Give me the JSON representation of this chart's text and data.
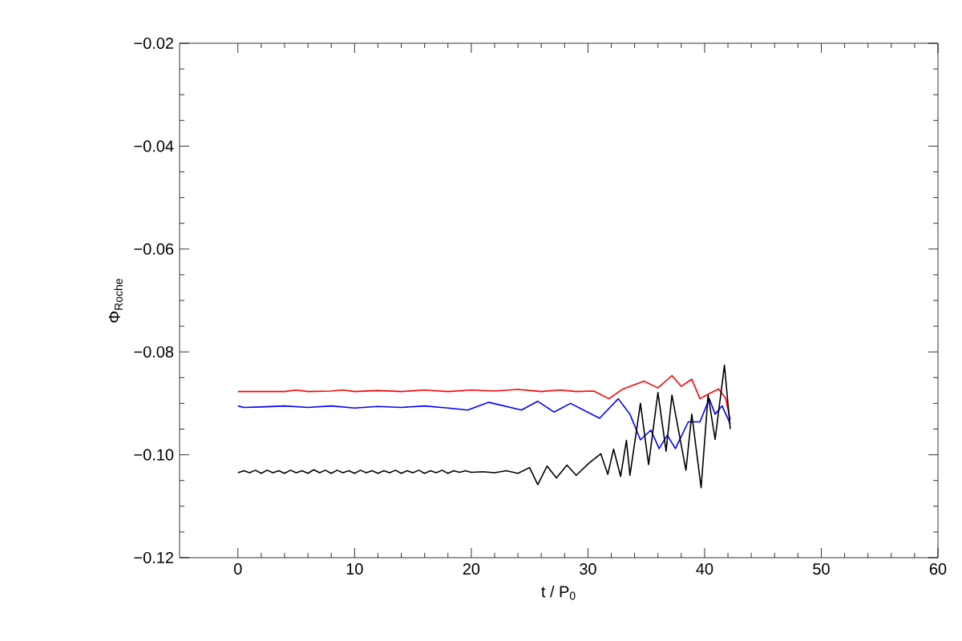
{
  "chart_data": {
    "type": "line",
    "xlabel": "t / P$_{0}$",
    "ylabel": "Φ$_{Roche}$",
    "xlim": [
      -5,
      60
    ],
    "xticks": [
      0,
      10,
      20,
      30,
      40,
      50,
      60
    ],
    "ylim": [
      -0.12,
      -0.02
    ],
    "yticks": [
      {
        "value": -0.12,
        "label": "−0.12"
      },
      {
        "value": -0.1,
        "label": "−0.10"
      },
      {
        "value": -0.08,
        "label": "−0.08"
      },
      {
        "value": -0.06,
        "label": "−0.06"
      },
      {
        "value": -0.04,
        "label": "−0.04"
      },
      {
        "value": -0.02,
        "label": "−0.02"
      }
    ],
    "marker": "none",
    "line_style": "solid",
    "series": [
      {
        "color": "#ff0000",
        "x": [
          0,
          4,
          5,
          6,
          8,
          9,
          10,
          12,
          14,
          16,
          18,
          20,
          22,
          24,
          26,
          27.6,
          29,
          30.5,
          31.8,
          33,
          34.8,
          36,
          37.2,
          38,
          38.9,
          39.6,
          40.4,
          41.2,
          41.8,
          42.2
        ],
        "values": [
          -0.0877,
          -0.0877,
          -0.0874,
          -0.0877,
          -0.0876,
          -0.0874,
          -0.0877,
          -0.0875,
          -0.0877,
          -0.0874,
          -0.0877,
          -0.0874,
          -0.0876,
          -0.0873,
          -0.0877,
          -0.0874,
          -0.0877,
          -0.0876,
          -0.0891,
          -0.0872,
          -0.0857,
          -0.087,
          -0.0846,
          -0.0867,
          -0.0853,
          -0.0891,
          -0.0881,
          -0.0872,
          -0.089,
          -0.0932
        ]
      },
      {
        "color": "#0000ff",
        "x": [
          0,
          0.5,
          2,
          4,
          6,
          8,
          10,
          12,
          14,
          16,
          18,
          19.7,
          21.5,
          24.3,
          25.7,
          27.1,
          28.5,
          31.0,
          32.6,
          33.6,
          34.5,
          35.4,
          36.1,
          36.8,
          37.5,
          38.6,
          39.6,
          40.4,
          40.9,
          41.5,
          42.2
        ],
        "values": [
          -0.0905,
          -0.0908,
          -0.0907,
          -0.0905,
          -0.0908,
          -0.0905,
          -0.0909,
          -0.0906,
          -0.0908,
          -0.0905,
          -0.0909,
          -0.0913,
          -0.0898,
          -0.0913,
          -0.0896,
          -0.0917,
          -0.09,
          -0.0929,
          -0.0891,
          -0.0921,
          -0.0971,
          -0.0952,
          -0.0988,
          -0.0962,
          -0.0988,
          -0.0936,
          -0.0936,
          -0.0891,
          -0.0921,
          -0.0905,
          -0.094
        ]
      },
      {
        "color": "#000000",
        "x": [
          0,
          0.5,
          1,
          1.5,
          2,
          2.5,
          3,
          3.5,
          4,
          4.5,
          5,
          5.5,
          6,
          6.5,
          7,
          7.5,
          8,
          8.5,
          9,
          9.5,
          10,
          10.5,
          11,
          11.5,
          12,
          12.5,
          13,
          13.5,
          14,
          14.5,
          15,
          15.5,
          16,
          16.5,
          17,
          17.5,
          18,
          18.5,
          19,
          19.5,
          20,
          21,
          22,
          23,
          24,
          25,
          25.7,
          26.5,
          27.3,
          28.2,
          29,
          30.1,
          31.1,
          31.7,
          32.2,
          32.8,
          33.3,
          33.6,
          34.5,
          35.2,
          36.0,
          36.7,
          37.2,
          38.4,
          38.9,
          39.7,
          40.3,
          40.9,
          41.7,
          42.2
        ],
        "values": [
          -0.1035,
          -0.1031,
          -0.1035,
          -0.103,
          -0.1036,
          -0.103,
          -0.1035,
          -0.1031,
          -0.1036,
          -0.103,
          -0.1035,
          -0.1031,
          -0.1036,
          -0.1029,
          -0.1035,
          -0.103,
          -0.1036,
          -0.103,
          -0.1035,
          -0.1031,
          -0.1036,
          -0.103,
          -0.1035,
          -0.1031,
          -0.1036,
          -0.1031,
          -0.1035,
          -0.103,
          -0.1036,
          -0.1031,
          -0.1035,
          -0.103,
          -0.1036,
          -0.1031,
          -0.1035,
          -0.103,
          -0.1036,
          -0.1031,
          -0.1034,
          -0.1031,
          -0.1034,
          -0.1033,
          -0.1035,
          -0.1031,
          -0.1036,
          -0.1025,
          -0.1058,
          -0.1022,
          -0.1045,
          -0.102,
          -0.104,
          -0.1016,
          -0.0998,
          -0.1038,
          -0.0989,
          -0.1042,
          -0.0972,
          -0.104,
          -0.09,
          -0.1019,
          -0.0879,
          -0.0993,
          -0.0884,
          -0.103,
          -0.0921,
          -0.1064,
          -0.0884,
          -0.097,
          -0.0826,
          -0.095
        ]
      }
    ]
  }
}
